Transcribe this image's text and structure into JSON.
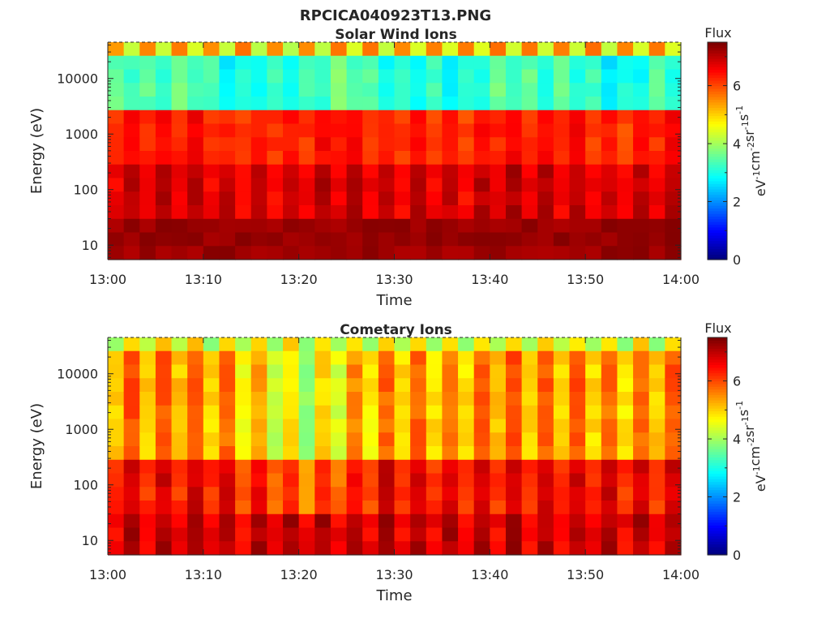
{
  "figure": {
    "title": "RPCICA040923T13.PNG"
  },
  "chart_data": [
    {
      "type": "heatmap",
      "title": "Solar Wind Ions",
      "xlabel": "Time",
      "ylabel": "Energy (eV)",
      "x_ticks": [
        "13:00",
        "13:10",
        "13:20",
        "13:30",
        "13:40",
        "13:50",
        "14:00"
      ],
      "x_range": [
        "13:00",
        "14:00"
      ],
      "y_scale": "log",
      "y_ticks": [
        "10",
        "100",
        "1000",
        "10000"
      ],
      "y_range_ev": [
        5.5,
        45000
      ],
      "colorbar": {
        "label": "Flux",
        "units": "eV⁻¹cm⁻²sr⁻¹s⁻¹",
        "units_base": [
          "eV",
          "cm",
          "sr",
          "s"
        ],
        "units_exp": [
          "-1",
          "-2",
          "-1",
          "-1"
        ],
        "ticks": [
          "0",
          "2",
          "4",
          "6"
        ],
        "range": [
          0,
          7.5
        ],
        "colormap": "jet"
      },
      "summary_levels_by_energy": [
        {
          "energy_ev": [
            20000,
            45000
          ],
          "flux_approx": 4.3
        },
        {
          "energy_ev": [
            3000,
            18000
          ],
          "flux_approx": 3.2
        },
        {
          "energy_ev": [
            300,
            3000
          ],
          "flux_approx": 6.3
        },
        {
          "energy_ev": [
            5.5,
            300
          ],
          "flux_approx": 7.1
        }
      ]
    },
    {
      "type": "heatmap",
      "title": "Cometary Ions",
      "xlabel": "Time",
      "ylabel": "Energy (eV)",
      "x_ticks": [
        "13:00",
        "13:10",
        "13:20",
        "13:30",
        "13:40",
        "13:50",
        "14:00"
      ],
      "x_range": [
        "13:00",
        "14:00"
      ],
      "y_scale": "log",
      "y_ticks": [
        "10",
        "100",
        "1000",
        "10000"
      ],
      "y_range_ev": [
        5.5,
        45000
      ],
      "colorbar": {
        "label": "Flux",
        "units": "eV⁻¹cm⁻²sr⁻¹s⁻¹",
        "units_base": [
          "eV",
          "cm",
          "sr",
          "s"
        ],
        "units_exp": [
          "-1",
          "-2",
          "-1",
          "-1"
        ],
        "ticks": [
          "0",
          "2",
          "4",
          "6"
        ],
        "range": [
          0,
          7.5
        ],
        "colormap": "jet"
      },
      "summary_levels_by_energy": [
        {
          "energy_ev": [
            10000,
            45000
          ],
          "flux_approx": 5.0
        },
        {
          "energy_ev": [
            300,
            10000
          ],
          "flux_approx": 5.5
        },
        {
          "energy_ev": [
            5.5,
            300
          ],
          "flux_approx": 6.6
        }
      ]
    }
  ]
}
